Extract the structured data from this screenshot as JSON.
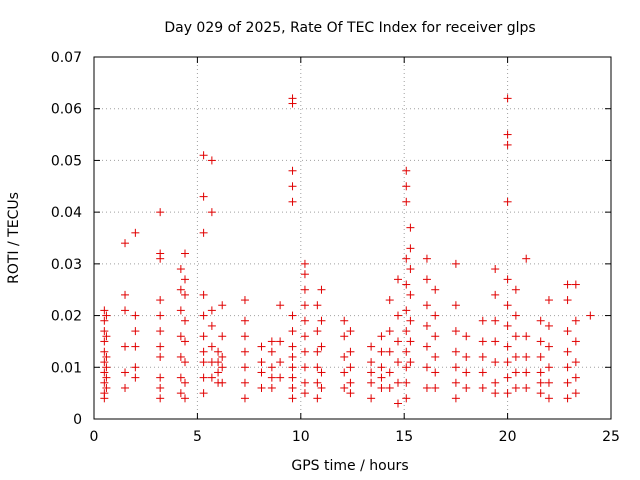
{
  "chart_data": {
    "type": "scatter",
    "title": "Day 029 of 2025, Rate Of TEC Index for receiver glps",
    "xlabel": "GPS time / hours",
    "ylabel": "ROTI / TECUs",
    "xlim": [
      0,
      25
    ],
    "ylim": [
      0,
      0.07
    ],
    "grid": true,
    "marker": "+",
    "color": "#e00000",
    "x_ticks": [
      {
        "value": 0,
        "label": "0"
      },
      {
        "value": 5,
        "label": "5"
      },
      {
        "value": 10,
        "label": "10"
      },
      {
        "value": 15,
        "label": "15"
      },
      {
        "value": 20,
        "label": "20"
      },
      {
        "value": 25,
        "label": "25"
      }
    ],
    "y_ticks": [
      {
        "value": 0,
        "label": "0"
      },
      {
        "value": 0.01,
        "label": "0.01"
      },
      {
        "value": 0.02,
        "label": "0.02"
      },
      {
        "value": 0.03,
        "label": "0.03"
      },
      {
        "value": 0.04,
        "label": "0.04"
      },
      {
        "value": 0.05,
        "label": "0.05"
      },
      {
        "value": 0.06,
        "label": "0.06"
      },
      {
        "value": 0.07,
        "label": "0.07"
      }
    ],
    "series": [
      {
        "name": "ROTI",
        "points": [
          [
            0.5,
            0.021
          ],
          [
            0.5,
            0.019
          ],
          [
            0.5,
            0.017
          ],
          [
            0.5,
            0.015
          ],
          [
            0.5,
            0.013
          ],
          [
            0.5,
            0.011
          ],
          [
            0.5,
            0.009
          ],
          [
            0.5,
            0.007
          ],
          [
            0.5,
            0.005
          ],
          [
            0.5,
            0.004
          ],
          [
            0.6,
            0.02
          ],
          [
            0.6,
            0.016
          ],
          [
            0.6,
            0.012
          ],
          [
            0.6,
            0.01
          ],
          [
            0.6,
            0.008
          ],
          [
            0.6,
            0.006
          ],
          [
            1.5,
            0.034
          ],
          [
            1.5,
            0.024
          ],
          [
            1.5,
            0.021
          ],
          [
            1.5,
            0.014
          ],
          [
            1.5,
            0.009
          ],
          [
            1.5,
            0.006
          ],
          [
            2.0,
            0.036
          ],
          [
            2.0,
            0.02
          ],
          [
            2.0,
            0.017
          ],
          [
            2.0,
            0.014
          ],
          [
            2.0,
            0.01
          ],
          [
            2.0,
            0.008
          ],
          [
            3.2,
            0.04
          ],
          [
            3.2,
            0.032
          ],
          [
            3.2,
            0.031
          ],
          [
            3.2,
            0.023
          ],
          [
            3.2,
            0.02
          ],
          [
            3.2,
            0.017
          ],
          [
            3.2,
            0.014
          ],
          [
            3.2,
            0.012
          ],
          [
            3.2,
            0.008
          ],
          [
            3.2,
            0.006
          ],
          [
            3.2,
            0.004
          ],
          [
            4.2,
            0.029
          ],
          [
            4.2,
            0.025
          ],
          [
            4.2,
            0.021
          ],
          [
            4.2,
            0.016
          ],
          [
            4.2,
            0.012
          ],
          [
            4.2,
            0.008
          ],
          [
            4.2,
            0.005
          ],
          [
            4.4,
            0.032
          ],
          [
            4.4,
            0.027
          ],
          [
            4.4,
            0.024
          ],
          [
            4.4,
            0.019
          ],
          [
            4.4,
            0.015
          ],
          [
            4.4,
            0.011
          ],
          [
            4.4,
            0.007
          ],
          [
            4.4,
            0.004
          ],
          [
            5.3,
            0.051
          ],
          [
            5.3,
            0.043
          ],
          [
            5.3,
            0.036
          ],
          [
            5.3,
            0.024
          ],
          [
            5.3,
            0.02
          ],
          [
            5.3,
            0.016
          ],
          [
            5.3,
            0.013
          ],
          [
            5.3,
            0.011
          ],
          [
            5.3,
            0.008
          ],
          [
            5.3,
            0.005
          ],
          [
            5.7,
            0.05
          ],
          [
            5.7,
            0.04
          ],
          [
            5.7,
            0.021
          ],
          [
            5.7,
            0.018
          ],
          [
            5.7,
            0.014
          ],
          [
            5.7,
            0.011
          ],
          [
            5.7,
            0.008
          ],
          [
            6.0,
            0.013
          ],
          [
            6.0,
            0.011
          ],
          [
            6.0,
            0.009
          ],
          [
            6.0,
            0.007
          ],
          [
            6.2,
            0.022
          ],
          [
            6.2,
            0.016
          ],
          [
            6.2,
            0.012
          ],
          [
            6.2,
            0.01
          ],
          [
            6.2,
            0.007
          ],
          [
            7.3,
            0.023
          ],
          [
            7.3,
            0.019
          ],
          [
            7.3,
            0.016
          ],
          [
            7.3,
            0.013
          ],
          [
            7.3,
            0.01
          ],
          [
            7.3,
            0.007
          ],
          [
            7.3,
            0.004
          ],
          [
            8.1,
            0.014
          ],
          [
            8.1,
            0.011
          ],
          [
            8.1,
            0.009
          ],
          [
            8.1,
            0.006
          ],
          [
            8.6,
            0.015
          ],
          [
            8.6,
            0.013
          ],
          [
            8.6,
            0.01
          ],
          [
            8.6,
            0.008
          ],
          [
            8.6,
            0.006
          ],
          [
            9.0,
            0.022
          ],
          [
            9.0,
            0.015
          ],
          [
            9.0,
            0.011
          ],
          [
            9.0,
            0.008
          ],
          [
            9.6,
            0.062
          ],
          [
            9.6,
            0.061
          ],
          [
            9.6,
            0.048
          ],
          [
            9.6,
            0.045
          ],
          [
            9.6,
            0.042
          ],
          [
            9.6,
            0.02
          ],
          [
            9.6,
            0.017
          ],
          [
            9.6,
            0.014
          ],
          [
            9.6,
            0.012
          ],
          [
            9.6,
            0.01
          ],
          [
            9.6,
            0.008
          ],
          [
            9.6,
            0.006
          ],
          [
            9.6,
            0.004
          ],
          [
            10.2,
            0.03
          ],
          [
            10.2,
            0.028
          ],
          [
            10.2,
            0.025
          ],
          [
            10.2,
            0.022
          ],
          [
            10.2,
            0.019
          ],
          [
            10.2,
            0.016
          ],
          [
            10.2,
            0.013
          ],
          [
            10.2,
            0.01
          ],
          [
            10.2,
            0.007
          ],
          [
            10.2,
            0.005
          ],
          [
            10.8,
            0.022
          ],
          [
            10.8,
            0.017
          ],
          [
            10.8,
            0.013
          ],
          [
            10.8,
            0.01
          ],
          [
            10.8,
            0.007
          ],
          [
            10.8,
            0.004
          ],
          [
            11.0,
            0.025
          ],
          [
            11.0,
            0.019
          ],
          [
            11.0,
            0.014
          ],
          [
            11.0,
            0.009
          ],
          [
            11.0,
            0.006
          ],
          [
            12.1,
            0.019
          ],
          [
            12.1,
            0.016
          ],
          [
            12.1,
            0.012
          ],
          [
            12.1,
            0.009
          ],
          [
            12.1,
            0.006
          ],
          [
            12.4,
            0.017
          ],
          [
            12.4,
            0.013
          ],
          [
            12.4,
            0.01
          ],
          [
            12.4,
            0.007
          ],
          [
            12.4,
            0.005
          ],
          [
            13.4,
            0.014
          ],
          [
            13.4,
            0.011
          ],
          [
            13.4,
            0.009
          ],
          [
            13.4,
            0.007
          ],
          [
            13.4,
            0.004
          ],
          [
            13.9,
            0.016
          ],
          [
            13.9,
            0.013
          ],
          [
            13.9,
            0.01
          ],
          [
            13.9,
            0.008
          ],
          [
            13.9,
            0.006
          ],
          [
            14.3,
            0.023
          ],
          [
            14.3,
            0.017
          ],
          [
            14.3,
            0.013
          ],
          [
            14.3,
            0.009
          ],
          [
            14.3,
            0.006
          ],
          [
            14.7,
            0.027
          ],
          [
            14.7,
            0.02
          ],
          [
            14.7,
            0.015
          ],
          [
            14.7,
            0.011
          ],
          [
            14.7,
            0.007
          ],
          [
            14.7,
            0.003
          ],
          [
            15.1,
            0.048
          ],
          [
            15.1,
            0.045
          ],
          [
            15.1,
            0.042
          ],
          [
            15.1,
            0.031
          ],
          [
            15.1,
            0.026
          ],
          [
            15.1,
            0.021
          ],
          [
            15.1,
            0.017
          ],
          [
            15.1,
            0.013
          ],
          [
            15.1,
            0.01
          ],
          [
            15.1,
            0.007
          ],
          [
            15.1,
            0.004
          ],
          [
            15.3,
            0.037
          ],
          [
            15.3,
            0.033
          ],
          [
            15.3,
            0.029
          ],
          [
            15.3,
            0.024
          ],
          [
            15.3,
            0.019
          ],
          [
            15.3,
            0.015
          ],
          [
            15.3,
            0.011
          ],
          [
            16.1,
            0.031
          ],
          [
            16.1,
            0.027
          ],
          [
            16.1,
            0.022
          ],
          [
            16.1,
            0.018
          ],
          [
            16.1,
            0.014
          ],
          [
            16.1,
            0.01
          ],
          [
            16.1,
            0.006
          ],
          [
            16.5,
            0.025
          ],
          [
            16.5,
            0.02
          ],
          [
            16.5,
            0.016
          ],
          [
            16.5,
            0.012
          ],
          [
            16.5,
            0.009
          ],
          [
            16.5,
            0.006
          ],
          [
            17.5,
            0.03
          ],
          [
            17.5,
            0.022
          ],
          [
            17.5,
            0.017
          ],
          [
            17.5,
            0.013
          ],
          [
            17.5,
            0.01
          ],
          [
            17.5,
            0.007
          ],
          [
            17.5,
            0.004
          ],
          [
            18.0,
            0.016
          ],
          [
            18.0,
            0.012
          ],
          [
            18.0,
            0.009
          ],
          [
            18.0,
            0.006
          ],
          [
            18.8,
            0.019
          ],
          [
            18.8,
            0.015
          ],
          [
            18.8,
            0.012
          ],
          [
            18.8,
            0.009
          ],
          [
            18.8,
            0.006
          ],
          [
            19.4,
            0.029
          ],
          [
            19.4,
            0.024
          ],
          [
            19.4,
            0.019
          ],
          [
            19.4,
            0.015
          ],
          [
            19.4,
            0.011
          ],
          [
            19.4,
            0.007
          ],
          [
            19.4,
            0.005
          ],
          [
            20.0,
            0.062
          ],
          [
            20.0,
            0.055
          ],
          [
            20.0,
            0.053
          ],
          [
            20.0,
            0.042
          ],
          [
            20.0,
            0.027
          ],
          [
            20.0,
            0.022
          ],
          [
            20.0,
            0.018
          ],
          [
            20.0,
            0.014
          ],
          [
            20.0,
            0.011
          ],
          [
            20.0,
            0.008
          ],
          [
            20.0,
            0.005
          ],
          [
            20.4,
            0.025
          ],
          [
            20.4,
            0.02
          ],
          [
            20.4,
            0.016
          ],
          [
            20.4,
            0.012
          ],
          [
            20.4,
            0.009
          ],
          [
            20.4,
            0.006
          ],
          [
            20.9,
            0.031
          ],
          [
            20.9,
            0.016
          ],
          [
            20.9,
            0.012
          ],
          [
            20.9,
            0.009
          ],
          [
            20.9,
            0.006
          ],
          [
            21.6,
            0.019
          ],
          [
            21.6,
            0.015
          ],
          [
            21.6,
            0.012
          ],
          [
            21.6,
            0.009
          ],
          [
            21.6,
            0.007
          ],
          [
            21.6,
            0.005
          ],
          [
            22.0,
            0.023
          ],
          [
            22.0,
            0.018
          ],
          [
            22.0,
            0.014
          ],
          [
            22.0,
            0.01
          ],
          [
            22.0,
            0.007
          ],
          [
            22.0,
            0.004
          ],
          [
            22.9,
            0.026
          ],
          [
            22.9,
            0.023
          ],
          [
            22.9,
            0.017
          ],
          [
            22.9,
            0.013
          ],
          [
            22.9,
            0.01
          ],
          [
            22.9,
            0.007
          ],
          [
            22.9,
            0.004
          ],
          [
            23.3,
            0.026
          ],
          [
            23.3,
            0.019
          ],
          [
            23.3,
            0.015
          ],
          [
            23.3,
            0.011
          ],
          [
            23.3,
            0.008
          ],
          [
            23.3,
            0.005
          ],
          [
            24.0,
            0.02
          ]
        ]
      }
    ]
  }
}
